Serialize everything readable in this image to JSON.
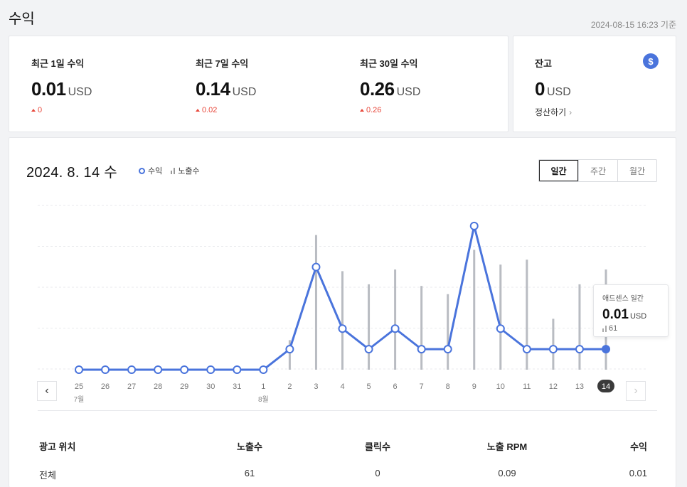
{
  "page": {
    "title": "수익",
    "timestamp": "2024-08-15 16:23 기준"
  },
  "summary": [
    {
      "label": "최근 1일 수익",
      "value": "0.01",
      "unit": "USD",
      "change": "0"
    },
    {
      "label": "최근 7일 수익",
      "value": "0.14",
      "unit": "USD",
      "change": "0.02"
    },
    {
      "label": "최근 30일 수익",
      "value": "0.26",
      "unit": "USD",
      "change": "0.26"
    }
  ],
  "balance": {
    "label": "잔고",
    "value": "0",
    "unit": "USD",
    "settle_label": "정산하기",
    "icon": "dollar-icon"
  },
  "chart_section": {
    "date_title": "2024. 8. 14 수",
    "legend": {
      "revenue": "수익",
      "impressions": "노출수"
    },
    "tabs": [
      {
        "label": "일간",
        "active": true
      },
      {
        "label": "주간",
        "active": false
      },
      {
        "label": "월간",
        "active": false
      }
    ],
    "tooltip": {
      "label": "애드센스 일간",
      "value": "0.01",
      "unit": "USD",
      "impressions": "61"
    }
  },
  "chart_data": {
    "type": "line",
    "categories": [
      "25",
      "26",
      "27",
      "28",
      "29",
      "30",
      "31",
      "1",
      "2",
      "3",
      "4",
      "5",
      "6",
      "7",
      "8",
      "9",
      "10",
      "11",
      "12",
      "13",
      "14"
    ],
    "month_labels": {
      "0": "7월",
      "7": "8월"
    },
    "selected_index": 20,
    "series": [
      {
        "name": "수익",
        "type": "line",
        "color": "#4a74dc",
        "values": [
          0,
          0,
          0,
          0,
          0,
          0,
          0,
          0,
          0.01,
          0.05,
          0.02,
          0.01,
          0.02,
          0.01,
          0.01,
          0.07,
          0.02,
          0.01,
          0.01,
          0.01,
          0.01
        ]
      },
      {
        "name": "노출수",
        "type": "bar",
        "color": "#b9bcc2",
        "values": [
          0,
          0,
          0,
          0,
          0,
          0,
          0,
          0,
          18,
          82,
          60,
          52,
          61,
          51,
          46,
          73,
          64,
          67,
          31,
          52,
          61
        ]
      }
    ],
    "ylim_revenue": [
      0,
      0.08
    ],
    "ylim_impressions": [
      0,
      100
    ],
    "grid": true
  },
  "table": {
    "headers": [
      "광고 위치",
      "노출수",
      "클릭수",
      "노출 RPM",
      "수익"
    ],
    "rows": [
      [
        "전체",
        "61",
        "0",
        "0.09",
        "0.01"
      ]
    ]
  }
}
